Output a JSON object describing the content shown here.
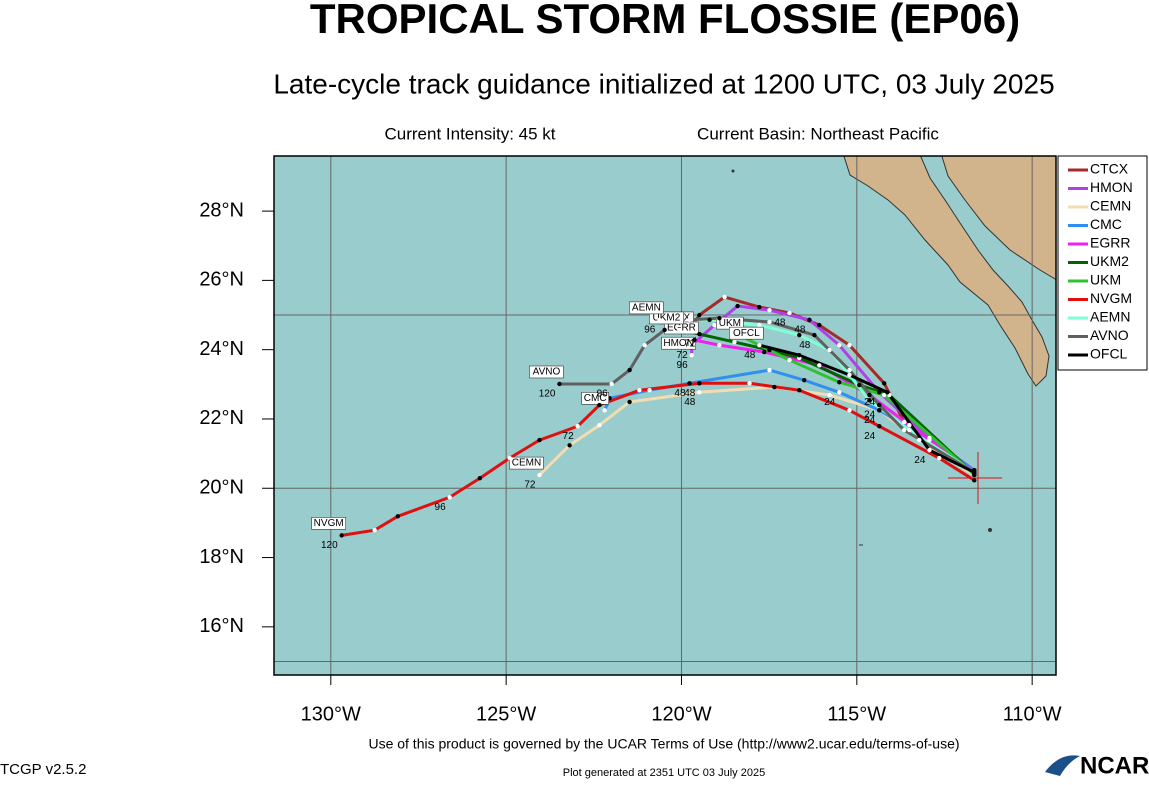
{
  "chart_data": {
    "type": "track-map",
    "title": "TROPICAL STORM FLOSSIE (EP06)",
    "subtitle": "Late-cycle track guidance initialized at 1200 UTC, 03 July 2025",
    "intensity": "Current Intensity: 45 kt",
    "basin": "Current Basin: Northeast Pacific",
    "terms": "Use of this product is governed by the UCAR Terms of Use (http://www2.ucar.edu/terms-of-use)",
    "version": "TCGP v2.5.2",
    "generated": "Plot generated at 2351 UTC   03 July 2025",
    "logo_text": "NCAR",
    "xlim": [
      -131.62,
      -109.32
    ],
    "ylim": [
      14.61,
      29.59
    ],
    "xticks": [
      {
        "value": -130,
        "label": "130°W"
      },
      {
        "value": -125,
        "label": "125°W"
      },
      {
        "value": -120,
        "label": "120°W"
      },
      {
        "value": -115,
        "label": "115°W"
      },
      {
        "value": -110,
        "label": "110°W"
      }
    ],
    "yticks": [
      {
        "value": 16,
        "label": "16°N"
      },
      {
        "value": 18,
        "label": "18°N"
      },
      {
        "value": 20,
        "label": "20°N"
      },
      {
        "value": 22,
        "label": "22°N"
      },
      {
        "value": 24,
        "label": "24°N"
      },
      {
        "value": 26,
        "label": "26°N"
      },
      {
        "value": 28,
        "label": "28°N"
      }
    ],
    "ygrid": [
      15,
      20,
      25
    ],
    "grid": true,
    "legend": "right",
    "series": [
      {
        "name": "CTCX",
        "color": "#a52a2a",
        "x": [
          -111.65,
          -113.65,
          -114.22,
          -115.21,
          -116.07,
          -116.92,
          -117.78,
          -118.77,
          -119.49,
          -119.77
        ],
        "values": [
          20.43,
          21.91,
          23.03,
          24.13,
          24.71,
          25.06,
          25.23,
          25.52,
          25.0,
          24.57
        ],
        "hours": [
          null,
          null,
          null,
          null,
          null,
          48,
          null,
          null,
          null,
          null
        ]
      },
      {
        "name": "HMON",
        "color": "#b040e8",
        "x": [
          -111.65,
          -112.93,
          -114.36,
          -115.5,
          -116.35,
          -117.49,
          -118.4,
          -119.06,
          -119.71,
          -119.71
        ],
        "values": [
          20.52,
          21.45,
          22.77,
          24.13,
          24.86,
          25.14,
          25.26,
          24.71,
          24.13,
          23.84
        ],
        "hours": [
          null,
          null,
          24,
          null,
          48,
          null,
          null,
          null,
          72,
          96
        ]
      },
      {
        "name": "CEMN",
        "color": "#f2ddb3",
        "x": [
          -111.65,
          -113.22,
          -114.36,
          -115.78,
          -117.35,
          -119.49,
          -121.48,
          -122.34,
          -123.19,
          -124.05
        ],
        "values": [
          20.38,
          21.39,
          22.25,
          22.69,
          22.92,
          22.77,
          22.49,
          21.82,
          21.24,
          20.38
        ],
        "hours": [
          null,
          null,
          24,
          null,
          null,
          48,
          null,
          null,
          null,
          72
        ]
      },
      {
        "name": "CMC",
        "color": "#3090f0",
        "x": [
          -111.65,
          -112.93,
          -114.36,
          -115.5,
          -116.5,
          -117.49,
          -119.77,
          -120.91,
          -122.05,
          -122.19
        ],
        "values": [
          20.52,
          21.39,
          22.25,
          22.77,
          23.12,
          23.41,
          23.03,
          22.83,
          22.6,
          22.25
        ],
        "hours": [
          null,
          null,
          null,
          24,
          null,
          null,
          48,
          null,
          null,
          null
        ]
      },
      {
        "name": "EGRR",
        "color": "#f020f0",
        "x": [
          -111.65,
          -113.5,
          -114.64,
          -116.07,
          -117.64,
          -118.92,
          -119.63
        ],
        "values": [
          20.46,
          21.82,
          22.69,
          23.55,
          23.93,
          24.13,
          24.28
        ]
      },
      {
        "name": "UKM2",
        "color": "#006400",
        "x": [
          -111.65,
          -114.07,
          -114.93,
          -116.64,
          -117.49,
          -118.49,
          -119.49,
          -120.06
        ],
        "values": [
          20.4,
          22.69,
          22.98,
          23.76,
          23.99,
          24.22,
          24.45,
          24.57
        ],
        "hours": [
          null,
          null,
          null,
          null,
          null,
          null,
          72,
          null
        ]
      },
      {
        "name": "UKM",
        "color": "#30c030",
        "x": [
          -111.65,
          -114.22,
          -115.5,
          -116.92,
          -117.78,
          -118.35
        ],
        "values": [
          20.4,
          22.69,
          23.06,
          23.7,
          24.13,
          24.42
        ]
      },
      {
        "name": "NVGM",
        "color": "#e01010",
        "x": [
          -111.65,
          -112.65,
          -114.36,
          -115.21,
          -116.64,
          -118.06,
          -119.49,
          -121.2,
          -122.34,
          -122.96,
          -124.05,
          -124.9,
          -125.75,
          -126.61,
          -128.09,
          -128.75,
          -129.69
        ],
        "values": [
          20.23,
          20.87,
          21.79,
          22.25,
          22.83,
          23.03,
          23.03,
          22.83,
          22.4,
          21.79,
          21.39,
          20.87,
          20.29,
          19.74,
          19.19,
          18.79,
          18.64
        ],
        "hours": [
          null,
          null,
          24,
          null,
          null,
          null,
          48,
          null,
          null,
          72,
          null,
          null,
          null,
          96,
          null,
          null,
          120
        ]
      },
      {
        "name": "AEMN",
        "color": "#7fffd4",
        "x": [
          -111.65,
          -113.5,
          -114.64,
          -115.78,
          -116.64,
          -117.78,
          -119.2,
          -120.63
        ],
        "values": [
          20.46,
          21.68,
          22.54,
          23.99,
          24.42,
          24.71,
          24.86,
          24.86
        ],
        "hours": [
          null,
          null,
          null,
          null,
          null,
          null,
          null,
          96
        ]
      },
      {
        "name": "AVNO",
        "color": "#606060",
        "x": [
          -111.65,
          -113.65,
          -114.36,
          -115.21,
          -116.21,
          -117.49,
          -118.92,
          -119.77,
          -120.48,
          -121.05,
          -121.48,
          -121.99,
          -123.48
        ],
        "values": [
          20.46,
          21.68,
          22.4,
          23.41,
          24.42,
          24.8,
          24.91,
          24.86,
          24.57,
          24.13,
          23.41,
          23.01,
          23.01
        ],
        "hours": [
          null,
          null,
          24,
          null,
          48,
          null,
          null,
          null,
          null,
          null,
          null,
          96,
          120
        ]
      },
      {
        "name": "OFCL",
        "color": "#000000",
        "x": [
          -111.65,
          -112.93,
          -114.13,
          -115.21,
          -116.64,
          -117.78
        ],
        "values": [
          20.46,
          21.1,
          22.77,
          23.27,
          23.84,
          24.13
        ],
        "hours": [
          null,
          24,
          null,
          null,
          null,
          48
        ]
      }
    ]
  }
}
